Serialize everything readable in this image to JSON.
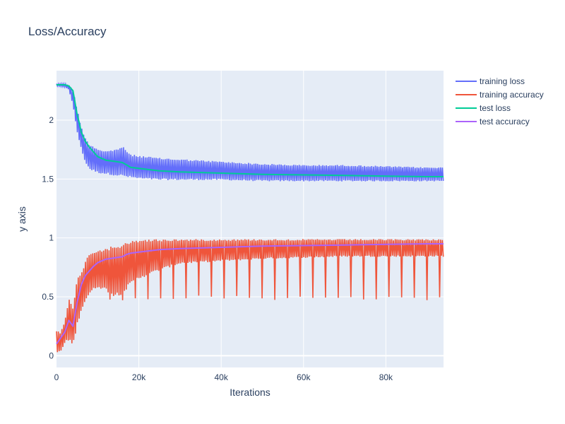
{
  "chart_data": {
    "type": "line",
    "title": "Loss/Accuracy",
    "xlabel": "Iterations",
    "ylabel": "y axis",
    "xlim": [
      0,
      94000
    ],
    "ylim": [
      -0.1,
      2.42
    ],
    "x_ticks": [
      {
        "value": 0,
        "label": "0"
      },
      {
        "value": 20000,
        "label": "20k"
      },
      {
        "value": 40000,
        "label": "40k"
      },
      {
        "value": 60000,
        "label": "60k"
      },
      {
        "value": 80000,
        "label": "80k"
      }
    ],
    "y_ticks": [
      {
        "value": 0,
        "label": "0"
      },
      {
        "value": 0.5,
        "label": "0.5"
      },
      {
        "value": 1,
        "label": "1"
      },
      {
        "value": 1.5,
        "label": "1.5"
      },
      {
        "value": 2,
        "label": "2"
      }
    ],
    "grid": true,
    "legend_position": "top-right",
    "plot_background": "#e5ecf6",
    "series": [
      {
        "name": "training loss",
        "color": "#636efa",
        "style": "noisy-band",
        "x": [
          0,
          2000,
          3000,
          4000,
          5000,
          6000,
          7000,
          8000,
          10000,
          12000,
          14000,
          16000,
          18000,
          20000,
          25000,
          30000,
          35000,
          40000,
          50000,
          60000,
          70000,
          80000,
          90000,
          94000
        ],
        "upper": [
          2.31,
          2.31,
          2.3,
          2.26,
          2.1,
          1.95,
          1.85,
          1.8,
          1.76,
          1.74,
          1.75,
          1.78,
          1.71,
          1.7,
          1.68,
          1.67,
          1.66,
          1.65,
          1.63,
          1.62,
          1.62,
          1.61,
          1.6,
          1.6
        ],
        "lower": [
          2.29,
          2.28,
          2.26,
          2.12,
          1.9,
          1.75,
          1.64,
          1.58,
          1.55,
          1.54,
          1.53,
          1.52,
          1.51,
          1.5,
          1.49,
          1.49,
          1.49,
          1.49,
          1.48,
          1.48,
          1.48,
          1.48,
          1.48,
          1.48
        ]
      },
      {
        "name": "training accuracy",
        "color": "#ef553b",
        "style": "noisy-band",
        "x": [
          0,
          1000,
          2000,
          3000,
          4000,
          5000,
          6000,
          7000,
          8000,
          10000,
          12000,
          14000,
          16000,
          18000,
          20000,
          25000,
          30000,
          40000,
          50000,
          60000,
          70000,
          80000,
          90000,
          94000
        ],
        "upper": [
          0.22,
          0.2,
          0.3,
          0.5,
          0.4,
          0.65,
          0.72,
          0.8,
          0.88,
          0.9,
          0.92,
          0.93,
          0.95,
          0.97,
          0.99,
          0.99,
          0.99,
          0.99,
          0.99,
          0.99,
          0.99,
          0.99,
          0.99,
          0.99
        ],
        "lower": [
          0.02,
          0.03,
          0.1,
          0.13,
          0.08,
          0.25,
          0.38,
          0.46,
          0.52,
          0.58,
          0.55,
          0.5,
          0.52,
          0.6,
          0.65,
          0.72,
          0.78,
          0.8,
          0.82,
          0.83,
          0.84,
          0.84,
          0.84,
          0.84
        ],
        "spike_low": 0.47
      },
      {
        "name": "test loss",
        "color": "#00cc96",
        "style": "line",
        "x": [
          0,
          2000,
          3000,
          4000,
          5000,
          5500,
          6000,
          7000,
          8000,
          9000,
          10000,
          12000,
          14000,
          16000,
          17000,
          18000,
          20000,
          25000,
          30000,
          40000,
          50000,
          60000,
          70000,
          80000,
          90000,
          94000
        ],
        "y": [
          2.3,
          2.3,
          2.29,
          2.25,
          2.05,
          1.98,
          1.9,
          1.82,
          1.77,
          1.73,
          1.69,
          1.66,
          1.65,
          1.64,
          1.62,
          1.6,
          1.59,
          1.57,
          1.56,
          1.55,
          1.54,
          1.535,
          1.53,
          1.525,
          1.52,
          1.52
        ]
      },
      {
        "name": "test accuracy",
        "color": "#ab63fa",
        "style": "line",
        "x": [
          0,
          1000,
          2000,
          3000,
          4000,
          5000,
          6000,
          7000,
          8000,
          9000,
          10000,
          12000,
          14000,
          16000,
          17000,
          18000,
          20000,
          25000,
          30000,
          40000,
          50000,
          60000,
          70000,
          80000,
          90000,
          94000
        ],
        "y": [
          0.1,
          0.15,
          0.2,
          0.3,
          0.25,
          0.45,
          0.6,
          0.68,
          0.72,
          0.76,
          0.79,
          0.82,
          0.83,
          0.84,
          0.86,
          0.87,
          0.88,
          0.9,
          0.91,
          0.92,
          0.93,
          0.935,
          0.94,
          0.945,
          0.95,
          0.95
        ]
      }
    ]
  }
}
